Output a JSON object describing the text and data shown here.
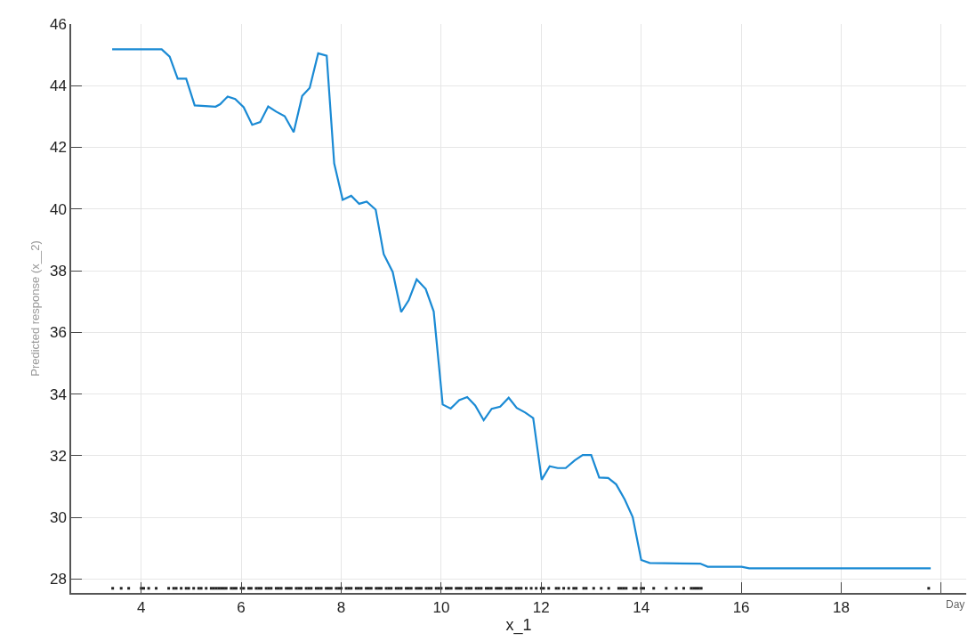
{
  "chart_data": {
    "type": "line",
    "xlabel": "x_1",
    "ylabel": "Predicted response (x__2)",
    "xlim": [
      2.6,
      20.5
    ],
    "xticks": [
      4,
      6,
      8,
      10,
      12,
      14,
      16,
      18,
      {
        "value": 20,
        "label": null
      }
    ],
    "ylim": [
      27.55,
      46
    ],
    "yticks": [
      28,
      30,
      32,
      34,
      36,
      38,
      40,
      42,
      44,
      46
    ],
    "grid": true,
    "marker": "none",
    "line_style": "solid",
    "annotations": [
      "Day"
    ],
    "series": [
      {
        "color": "#1a8ad4",
        "x": [
          3.42,
          4.41,
          4.57,
          4.73,
          4.9,
          5.07,
          5.49,
          5.58,
          5.73,
          5.88,
          6.05,
          6.22,
          6.38,
          6.54,
          6.7,
          6.87,
          7.05,
          7.22,
          7.37,
          7.54,
          7.71,
          7.86,
          8.03,
          8.2,
          8.36,
          8.51,
          8.69,
          8.85,
          9.03,
          9.2,
          9.35,
          9.51,
          9.69,
          9.85,
          10.03,
          10.19,
          10.36,
          10.52,
          10.68,
          10.85,
          11.01,
          11.18,
          11.35,
          11.51,
          11.68,
          11.84,
          12.01,
          12.17,
          12.33,
          12.49,
          12.67,
          12.83,
          13.0,
          13.16,
          13.34,
          13.5,
          13.67,
          13.83,
          14.0,
          14.17,
          15.18,
          15.33,
          16.01,
          16.16,
          19.79
        ],
        "values": [
          45.18,
          45.18,
          44.94,
          44.23,
          44.23,
          43.36,
          43.32,
          43.4,
          43.65,
          43.57,
          43.3,
          42.73,
          42.82,
          43.33,
          43.16,
          43.01,
          42.49,
          43.67,
          43.93,
          45.05,
          44.97,
          41.48,
          40.3,
          40.43,
          40.17,
          40.24,
          39.98,
          38.54,
          37.96,
          36.66,
          37.04,
          37.72,
          37.41,
          36.68,
          33.66,
          33.53,
          33.8,
          33.9,
          33.63,
          33.15,
          33.52,
          33.59,
          33.88,
          33.55,
          33.4,
          33.22,
          31.22,
          31.66,
          31.6,
          31.6,
          31.85,
          32.02,
          32.02,
          31.29,
          31.28,
          31.07,
          30.58,
          30.01,
          28.62,
          28.52,
          28.5,
          28.4,
          28.4,
          28.35,
          28.35
        ]
      },
      {
        "type": "scatter",
        "color": "#222222",
        "marker": "square",
        "x": [
          3.43,
          3.6,
          3.75,
          4.0,
          4.05,
          4.15,
          4.3,
          4.55,
          4.65,
          4.7,
          4.8,
          4.9,
          4.95,
          5.05,
          5.15,
          5.2,
          5.3,
          5.4,
          5.45,
          5.5,
          5.55,
          5.6,
          5.65,
          5.7,
          5.8,
          5.85,
          5.9,
          6.0,
          6.05,
          6.15,
          6.2,
          6.3,
          6.35,
          6.4,
          6.5,
          6.55,
          6.6,
          6.7,
          6.75,
          6.8,
          6.9,
          6.95,
          7.0,
          7.1,
          7.15,
          7.2,
          7.3,
          7.35,
          7.4,
          7.5,
          7.55,
          7.6,
          7.7,
          7.75,
          7.8,
          7.9,
          7.95,
          8.0,
          8.1,
          8.15,
          8.2,
          8.3,
          8.35,
          8.4,
          8.5,
          8.55,
          8.6,
          8.7,
          8.75,
          8.8,
          8.9,
          8.95,
          9.0,
          9.1,
          9.15,
          9.2,
          9.3,
          9.35,
          9.4,
          9.5,
          9.55,
          9.6,
          9.7,
          9.75,
          9.8,
          9.9,
          9.95,
          10.0,
          10.1,
          10.15,
          10.2,
          10.3,
          10.35,
          10.4,
          10.5,
          10.55,
          10.6,
          10.7,
          10.75,
          10.8,
          10.9,
          10.95,
          11.0,
          11.1,
          11.15,
          11.2,
          11.3,
          11.35,
          11.4,
          11.5,
          11.55,
          11.6,
          11.7,
          11.8,
          11.9,
          12.0,
          12.05,
          12.15,
          12.3,
          12.35,
          12.45,
          12.55,
          12.65,
          12.7,
          12.85,
          12.9,
          13.05,
          13.2,
          13.35,
          13.55,
          13.6,
          13.65,
          13.7,
          13.85,
          13.9,
          14.0,
          14.05,
          14.25,
          14.5,
          14.7,
          14.85,
          15.0,
          15.05,
          15.1,
          15.15,
          15.2,
          19.75
        ],
        "values": [
          27.7,
          27.7,
          27.7,
          27.7,
          27.7,
          27.7,
          27.7,
          27.7,
          27.7,
          27.7,
          27.7,
          27.7,
          27.7,
          27.7,
          27.7,
          27.7,
          27.7,
          27.7,
          27.7,
          27.7,
          27.7,
          27.7,
          27.7,
          27.7,
          27.7,
          27.7,
          27.7,
          27.7,
          27.7,
          27.7,
          27.7,
          27.7,
          27.7,
          27.7,
          27.7,
          27.7,
          27.7,
          27.7,
          27.7,
          27.7,
          27.7,
          27.7,
          27.7,
          27.7,
          27.7,
          27.7,
          27.7,
          27.7,
          27.7,
          27.7,
          27.7,
          27.7,
          27.7,
          27.7,
          27.7,
          27.7,
          27.7,
          27.7,
          27.7,
          27.7,
          27.7,
          27.7,
          27.7,
          27.7,
          27.7,
          27.7,
          27.7,
          27.7,
          27.7,
          27.7,
          27.7,
          27.7,
          27.7,
          27.7,
          27.7,
          27.7,
          27.7,
          27.7,
          27.7,
          27.7,
          27.7,
          27.7,
          27.7,
          27.7,
          27.7,
          27.7,
          27.7,
          27.7,
          27.7,
          27.7,
          27.7,
          27.7,
          27.7,
          27.7,
          27.7,
          27.7,
          27.7,
          27.7,
          27.7,
          27.7,
          27.7,
          27.7,
          27.7,
          27.7,
          27.7,
          27.7,
          27.7,
          27.7,
          27.7,
          27.7,
          27.7,
          27.7,
          27.7,
          27.7,
          27.7,
          27.7,
          27.7,
          27.7,
          27.7,
          27.7,
          27.7,
          27.7,
          27.7,
          27.7,
          27.7,
          27.7,
          27.7,
          27.7,
          27.7,
          27.7,
          27.7,
          27.7,
          27.7,
          27.7,
          27.7,
          27.7,
          27.7,
          27.7,
          27.7,
          27.7,
          27.7,
          27.7,
          27.7,
          27.7,
          27.7,
          27.7,
          27.7
        ]
      }
    ]
  }
}
